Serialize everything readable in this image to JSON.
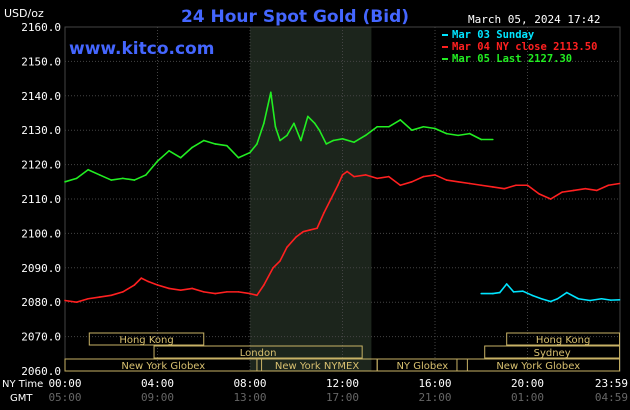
{
  "header": {
    "title": "24 Hour Spot Gold (Bid)",
    "unit_label": "USD/oz",
    "date_time": "March 05, 2024 17:42",
    "watermark": "www.kitco.com"
  },
  "legend": [
    {
      "label": "Mar 03 Sunday",
      "color": "#00e5ff"
    },
    {
      "label": "Mar 04 NY close 2113.50",
      "color": "#ff2020"
    },
    {
      "label": "Mar 05 Last 2127.30",
      "color": "#22ee22"
    }
  ],
  "axes": {
    "y_ticks": [
      "2160.0",
      "2150.0",
      "2140.0",
      "2130.0",
      "2120.0",
      "2110.0",
      "2100.0",
      "2090.0",
      "2080.0",
      "2070.0",
      "2060.0"
    ],
    "x_row_label": "NY Time",
    "x_ticks": [
      "00:00",
      "04:00",
      "08:00",
      "12:00",
      "16:00",
      "20:00",
      "23:59"
    ],
    "gmt_row_label": "GMT",
    "gmt_ticks": [
      "05:00",
      "09:00",
      "13:00",
      "17:00",
      "21:00",
      "01:00",
      "04:59"
    ]
  },
  "sessions": [
    {
      "label": "Hong Kong"
    },
    {
      "label": "London"
    },
    {
      "label": "New York Globex"
    },
    {
      "label": "New York NYMEX"
    },
    {
      "label": "NY Globex"
    },
    {
      "label": "Hong Kong"
    },
    {
      "label": "Sydney"
    },
    {
      "label": "New York Globex"
    }
  ],
  "colors": {
    "background": "#000000",
    "grid": "#444444",
    "title": "#4466ff",
    "highlight_band": "#1c251c",
    "session_box": "#c8b266",
    "session_text": "#d8c070"
  },
  "chart_data": {
    "type": "line",
    "title": "24 Hour Spot Gold (Bid)",
    "ylabel": "USD/oz",
    "x_unit": "hours (NY time)",
    "xlim": [
      0,
      24
    ],
    "ylim": [
      2060,
      2160
    ],
    "grid": true,
    "legend_position": "top-right",
    "highlighted_interval_hours": [
      8,
      13.25
    ],
    "series": [
      {
        "name": "Mar 03 Sunday",
        "color": "#00e5ff",
        "x": [
          18,
          18.5,
          18.8,
          19.1,
          19.4,
          19.8,
          20.2,
          20.6,
          21.0,
          21.3,
          21.7,
          22.2,
          22.7,
          23.2,
          23.6,
          23.98
        ],
        "y": [
          2082.5,
          2082.5,
          2082.8,
          2085.3,
          2083.0,
          2083.2,
          2082.0,
          2081.0,
          2080.2,
          2081.0,
          2082.8,
          2081.0,
          2080.5,
          2081.0,
          2080.6,
          2080.7
        ]
      },
      {
        "name": "Mar 04 NY close 2113.50",
        "color": "#ff2020",
        "x": [
          0,
          0.5,
          1.0,
          1.5,
          2.0,
          2.5,
          3.0,
          3.3,
          3.6,
          4.0,
          4.5,
          5.0,
          5.5,
          6.0,
          6.5,
          7.0,
          7.5,
          8.0,
          8.3,
          8.6,
          9.0,
          9.3,
          9.6,
          10.0,
          10.3,
          10.6,
          10.9,
          11.2,
          11.5,
          11.8,
          12.0,
          12.2,
          12.5,
          13.0,
          13.5,
          14.0,
          14.5,
          15.0,
          15.5,
          16.0,
          16.5,
          17.0,
          17.5,
          18.0,
          18.5,
          19.0,
          19.5,
          20.0,
          20.5,
          21.0,
          21.5,
          22.0,
          22.5,
          23.0,
          23.5,
          23.98
        ],
        "y": [
          2080.5,
          2080.0,
          2081.0,
          2081.5,
          2082.0,
          2083.0,
          2085.0,
          2087.0,
          2086.0,
          2085.0,
          2084.0,
          2083.5,
          2084.0,
          2083.0,
          2082.5,
          2083.0,
          2083.0,
          2082.5,
          2082.0,
          2085.0,
          2090.0,
          2092.0,
          2096.0,
          2099.0,
          2100.5,
          2101.0,
          2101.5,
          2106.0,
          2110.0,
          2114.0,
          2117.0,
          2118.0,
          2116.5,
          2117.0,
          2116.0,
          2116.5,
          2114.0,
          2115.0,
          2116.5,
          2117.0,
          2115.5,
          2115.0,
          2114.5,
          2114.0,
          2113.5,
          2113.0,
          2114.0,
          2114.0,
          2111.5,
          2110.0,
          2112.0,
          2112.5,
          2113.0,
          2112.5,
          2114.0,
          2114.5
        ]
      },
      {
        "name": "Mar 05 Last 2127.30",
        "color": "#22ee22",
        "x": [
          0,
          0.5,
          1.0,
          1.5,
          2.0,
          2.5,
          3.0,
          3.5,
          4.0,
          4.5,
          5.0,
          5.5,
          6.0,
          6.5,
          7.0,
          7.5,
          8.0,
          8.3,
          8.6,
          8.9,
          9.1,
          9.3,
          9.6,
          9.9,
          10.2,
          10.5,
          10.8,
          11.0,
          11.3,
          11.6,
          12.0,
          12.5,
          13.0,
          13.5,
          14.0,
          14.5,
          15.0,
          15.5,
          16.0,
          16.5,
          17.0,
          17.5,
          18.0,
          18.5
        ],
        "y": [
          2115.0,
          2116.0,
          2118.5,
          2117.0,
          2115.5,
          2116.0,
          2115.5,
          2117.0,
          2121.0,
          2124.0,
          2122.0,
          2125.0,
          2127.0,
          2126.0,
          2125.5,
          2122.0,
          2123.5,
          2126.0,
          2132.0,
          2141.0,
          2131.0,
          2127.0,
          2128.5,
          2132.0,
          2127.0,
          2134.0,
          2132.0,
          2130.0,
          2126.0,
          2127.0,
          2127.5,
          2126.5,
          2128.5,
          2131.0,
          2131.0,
          2133.0,
          2130.0,
          2131.0,
          2130.5,
          2129.0,
          2128.5,
          2129.0,
          2127.3,
          2127.3
        ]
      }
    ]
  }
}
